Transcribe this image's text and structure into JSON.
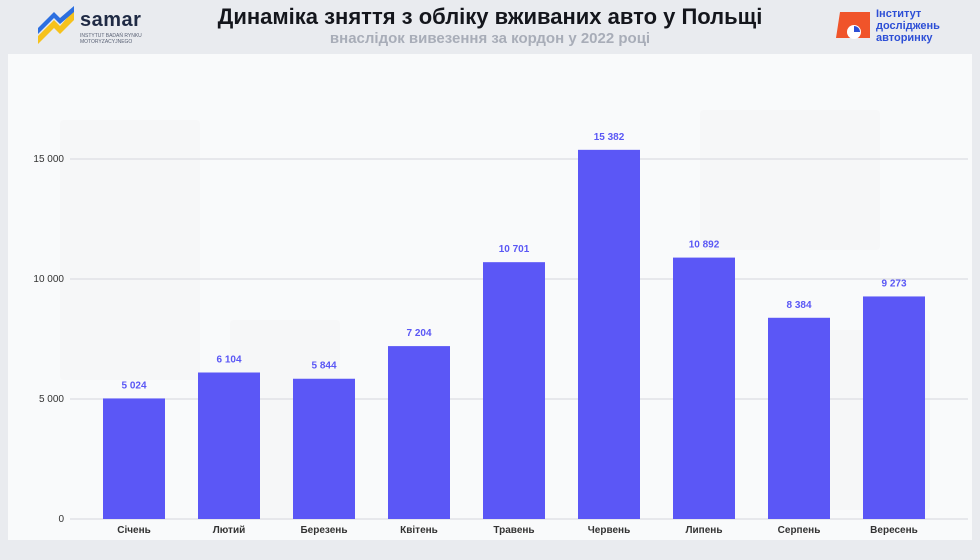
{
  "header": {
    "title": "Динаміка зняття з обліку вживаних авто у Польщі",
    "subtitle": "внаслідок вивезення за кордон у 2022 році",
    "left_logo": {
      "name": "samar",
      "tagline": "INSTYTUT BADAŃ RYNKU MOTORYZACYJNEGO",
      "icon": "samar-logo-icon"
    },
    "right_logo": {
      "lines": [
        "Інститут",
        "досліджень",
        "авторинку"
      ],
      "icon": "iar-logo-icon"
    }
  },
  "colors": {
    "bar": "#5b57f6",
    "value_label": "#5a57f5",
    "grid": "#d5d7de",
    "logo_orange": "#f0542a",
    "logo_blue": "#2d4fd6"
  },
  "chart_data": {
    "type": "bar",
    "categories": [
      "Січень",
      "Лютий",
      "Березень",
      "Квітень",
      "Травень",
      "Червень",
      "Липень",
      "Серпень",
      "Вересень"
    ],
    "values": [
      5024,
      6104,
      5844,
      7204,
      10701,
      15382,
      10892,
      8384,
      9273
    ],
    "value_labels": [
      "5 024",
      "6 104",
      "5 844",
      "7 204",
      "10 701",
      "15 382",
      "10 892",
      "8 384",
      "9 273"
    ],
    "yticks": [
      0,
      5000,
      10000,
      15000
    ],
    "ytick_labels": [
      "0",
      "5 000",
      "10 000",
      "15 000"
    ],
    "ylim": [
      0,
      17000
    ],
    "grid": true,
    "legend": "none"
  }
}
